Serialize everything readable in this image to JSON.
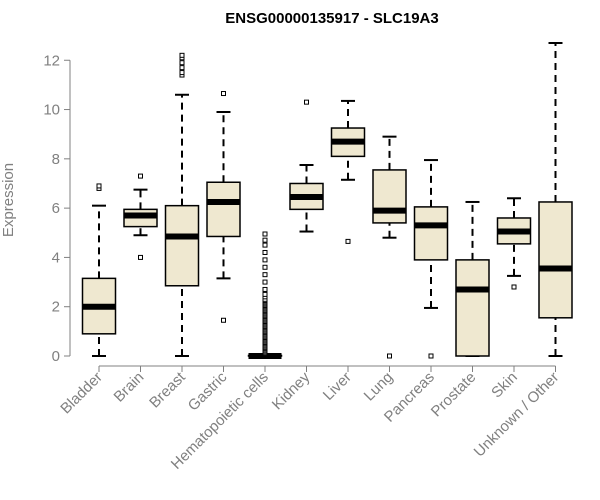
{
  "chart_data": {
    "type": "boxplot",
    "title": "ENSG00000135917 - SLC19A3",
    "xlabel": "",
    "ylabel": "Expression",
    "ylim": [
      0,
      12.7
    ],
    "yticks": [
      0,
      2,
      4,
      6,
      8,
      10,
      12
    ],
    "grid": false,
    "box_fill": "#efe8d0",
    "outline_color": "#000000",
    "axis_color": "#808080",
    "categories": [
      "Bladder",
      "Brain",
      "Breast",
      "Gastric",
      "Hematopoietic cells",
      "Kidney",
      "Liver",
      "Lung",
      "Pancreas",
      "Prostate",
      "Skin",
      "Unknown / Other"
    ],
    "boxes": [
      {
        "label": "Bladder",
        "whisker_low": 0.0,
        "q1": 0.9,
        "median": 2.0,
        "q3": 3.15,
        "whisker_high": 6.1,
        "outliers": [
          6.8,
          6.9
        ]
      },
      {
        "label": "Brain",
        "whisker_low": 4.9,
        "q1": 5.25,
        "median": 5.7,
        "q3": 5.95,
        "whisker_high": 6.75,
        "outliers": [
          4.0,
          7.3
        ]
      },
      {
        "label": "Breast",
        "whisker_low": 0.0,
        "q1": 2.85,
        "median": 4.85,
        "q3": 6.1,
        "whisker_high": 10.6,
        "outliers": [
          11.4,
          11.5,
          11.7,
          11.9,
          12.1,
          12.2
        ]
      },
      {
        "label": "Gastric",
        "whisker_low": 3.15,
        "q1": 4.85,
        "median": 6.25,
        "q3": 7.05,
        "whisker_high": 9.9,
        "outliers": [
          1.45,
          10.65
        ]
      },
      {
        "label": "Hematopoietic cells",
        "whisker_low": 0.0,
        "q1": 0.0,
        "median": 0.0,
        "q3": 0.02,
        "whisker_high": 0.05,
        "outliers": [
          0.1,
          0.15,
          0.2,
          0.25,
          0.3,
          0.35,
          0.4,
          0.45,
          0.5,
          0.55,
          0.6,
          0.65,
          0.7,
          0.75,
          0.8,
          0.85,
          0.9,
          0.95,
          1.0,
          1.05,
          1.1,
          1.15,
          1.2,
          1.25,
          1.3,
          1.35,
          1.4,
          1.45,
          1.5,
          1.55,
          1.6,
          1.65,
          1.7,
          1.75,
          1.8,
          1.85,
          1.9,
          1.95,
          2.0,
          2.05,
          2.1,
          2.15,
          2.2,
          2.25,
          2.3,
          2.4,
          2.5,
          2.7,
          3.0,
          3.3,
          3.6,
          3.9,
          4.2,
          4.5,
          4.7,
          4.95
        ]
      },
      {
        "label": "Kidney",
        "whisker_low": 5.05,
        "q1": 5.95,
        "median": 6.45,
        "q3": 7.0,
        "whisker_high": 7.75,
        "outliers": [
          10.3
        ]
      },
      {
        "label": "Liver",
        "whisker_low": 7.15,
        "q1": 8.1,
        "median": 8.7,
        "q3": 9.25,
        "whisker_high": 10.35,
        "outliers": [
          4.65
        ]
      },
      {
        "label": "Lung",
        "whisker_low": 4.8,
        "q1": 5.4,
        "median": 5.9,
        "q3": 7.55,
        "whisker_high": 8.9,
        "outliers": [
          0.0
        ]
      },
      {
        "label": "Pancreas",
        "whisker_low": 1.95,
        "q1": 3.9,
        "median": 5.3,
        "q3": 6.05,
        "whisker_high": 7.95,
        "outliers": [
          0.0
        ]
      },
      {
        "label": "Prostate",
        "whisker_low": 0.0,
        "q1": 0.0,
        "median": 2.7,
        "q3": 3.9,
        "whisker_high": 6.25,
        "outliers": []
      },
      {
        "label": "Skin",
        "whisker_low": 3.25,
        "q1": 4.55,
        "median": 5.05,
        "q3": 5.6,
        "whisker_high": 6.4,
        "outliers": [
          2.8
        ]
      },
      {
        "label": "Unknown / Other",
        "whisker_low": 0.0,
        "q1": 1.55,
        "median": 3.55,
        "q3": 6.25,
        "whisker_high": 12.7,
        "outliers": []
      }
    ]
  }
}
